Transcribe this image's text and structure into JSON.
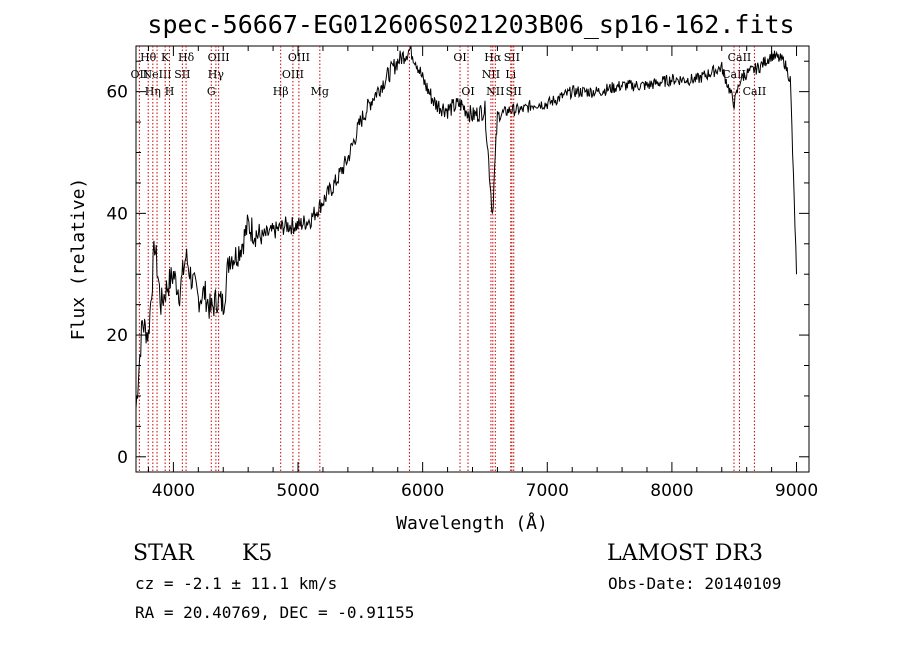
{
  "chart_data": {
    "type": "line",
    "title": "spec-56667-EG012606S021203B06_sp16-162.fits",
    "xlabel": "Wavelength (Å)",
    "ylabel": "Flux (relative)",
    "xlim": [
      3700,
      9100
    ],
    "ylim": [
      -2.5,
      67.5
    ],
    "xticks": [
      "4000",
      "5000",
      "6000",
      "7000",
      "8000",
      "9000"
    ],
    "yticks": [
      "0",
      "20",
      "40",
      "60"
    ],
    "xtick_values": [
      4000,
      5000,
      6000,
      7000,
      8000,
      9000
    ],
    "ytick_values": [
      0,
      20,
      40,
      60
    ],
    "series": [
      {
        "values_description_free": true,
        "x": [
          3700,
          3750,
          3800,
          3850,
          3900,
          3950,
          4000,
          4050,
          4100,
          4150,
          4200,
          4250,
          4300,
          4350,
          4400,
          4450,
          4500,
          4550,
          4600,
          4700,
          4800,
          4900,
          5000,
          5100,
          5200,
          5300,
          5400,
          5500,
          5600,
          5700,
          5800,
          5850,
          5900,
          5950,
          6000,
          6100,
          6200,
          6300,
          6400,
          6500,
          6560,
          6600,
          6700,
          6800,
          6900,
          7000,
          7200,
          7400,
          7600,
          7800,
          8000,
          8200,
          8400,
          8500,
          8550,
          8600,
          8700,
          8800,
          8900,
          8950,
          9000
        ],
        "y": [
          8,
          22,
          20,
          35,
          25,
          28,
          30,
          27,
          33,
          29,
          26,
          27,
          24,
          26,
          25,
          33,
          33,
          35,
          38,
          36,
          37,
          38,
          38,
          39,
          42,
          45,
          49,
          55,
          59,
          62,
          65,
          66,
          67,
          65,
          62,
          58,
          57,
          58,
          56,
          57,
          40,
          56,
          57,
          57,
          58,
          58,
          60,
          60,
          61,
          61,
          62,
          62,
          64,
          58,
          62,
          63,
          64,
          66,
          65,
          62,
          30
        ]
      }
    ],
    "line_markers": [
      {
        "x": 3727,
        "label": "OII",
        "row": 2
      },
      {
        "x": 3798,
        "label": "Hθ",
        "row": 1
      },
      {
        "x": 3835,
        "label": "Hη",
        "row": 3
      },
      {
        "x": 3869,
        "label": "NeIII",
        "row": 2
      },
      {
        "x": 3934,
        "label": "K",
        "row": 1
      },
      {
        "x": 3969,
        "label": "H",
        "row": 3
      },
      {
        "x": 4072,
        "label": "SII",
        "row": 2
      },
      {
        "x": 4102,
        "label": "Hδ",
        "row": 1
      },
      {
        "x": 4304,
        "label": "G",
        "row": 3
      },
      {
        "x": 4341,
        "label": "Hγ",
        "row": 2
      },
      {
        "x": 4363,
        "label": "OIII",
        "row": 1
      },
      {
        "x": 4861,
        "label": "Hβ",
        "row": 3
      },
      {
        "x": 4959,
        "label": "OIII",
        "row": 2
      },
      {
        "x": 5007,
        "label": "OIII",
        "row": 1
      },
      {
        "x": 5175,
        "label": "Mg",
        "row": 3
      },
      {
        "x": 5894,
        "label": "",
        "row": 0
      },
      {
        "x": 6300,
        "label": "OI",
        "row": 1
      },
      {
        "x": 6364,
        "label": "OI",
        "row": 3
      },
      {
        "x": 6548,
        "label": "NII",
        "row": 2
      },
      {
        "x": 6563,
        "label": "Hα",
        "row": 1
      },
      {
        "x": 6583,
        "label": "NII",
        "row": 3
      },
      {
        "x": 6707,
        "label": "Li",
        "row": 2
      },
      {
        "x": 6716,
        "label": "SII",
        "row": 1
      },
      {
        "x": 6731,
        "label": "SII",
        "row": 3
      },
      {
        "x": 8498,
        "label": "CaII",
        "row": 2
      },
      {
        "x": 8542,
        "label": "CaII",
        "row": 1
      },
      {
        "x": 8662,
        "label": "CaII",
        "row": 3
      }
    ],
    "marker_color": "#cc0000",
    "line_color": "#000000",
    "legend": "none",
    "grid": false
  },
  "info": {
    "object_class": "STAR",
    "subclass": "K5",
    "cz": "cz = -2.1 ± 11.1 km/s",
    "coords": "RA =  20.40769, DEC =  -0.91155",
    "survey": "LAMOST DR3",
    "obs_date": "Obs-Date: 20140109"
  }
}
